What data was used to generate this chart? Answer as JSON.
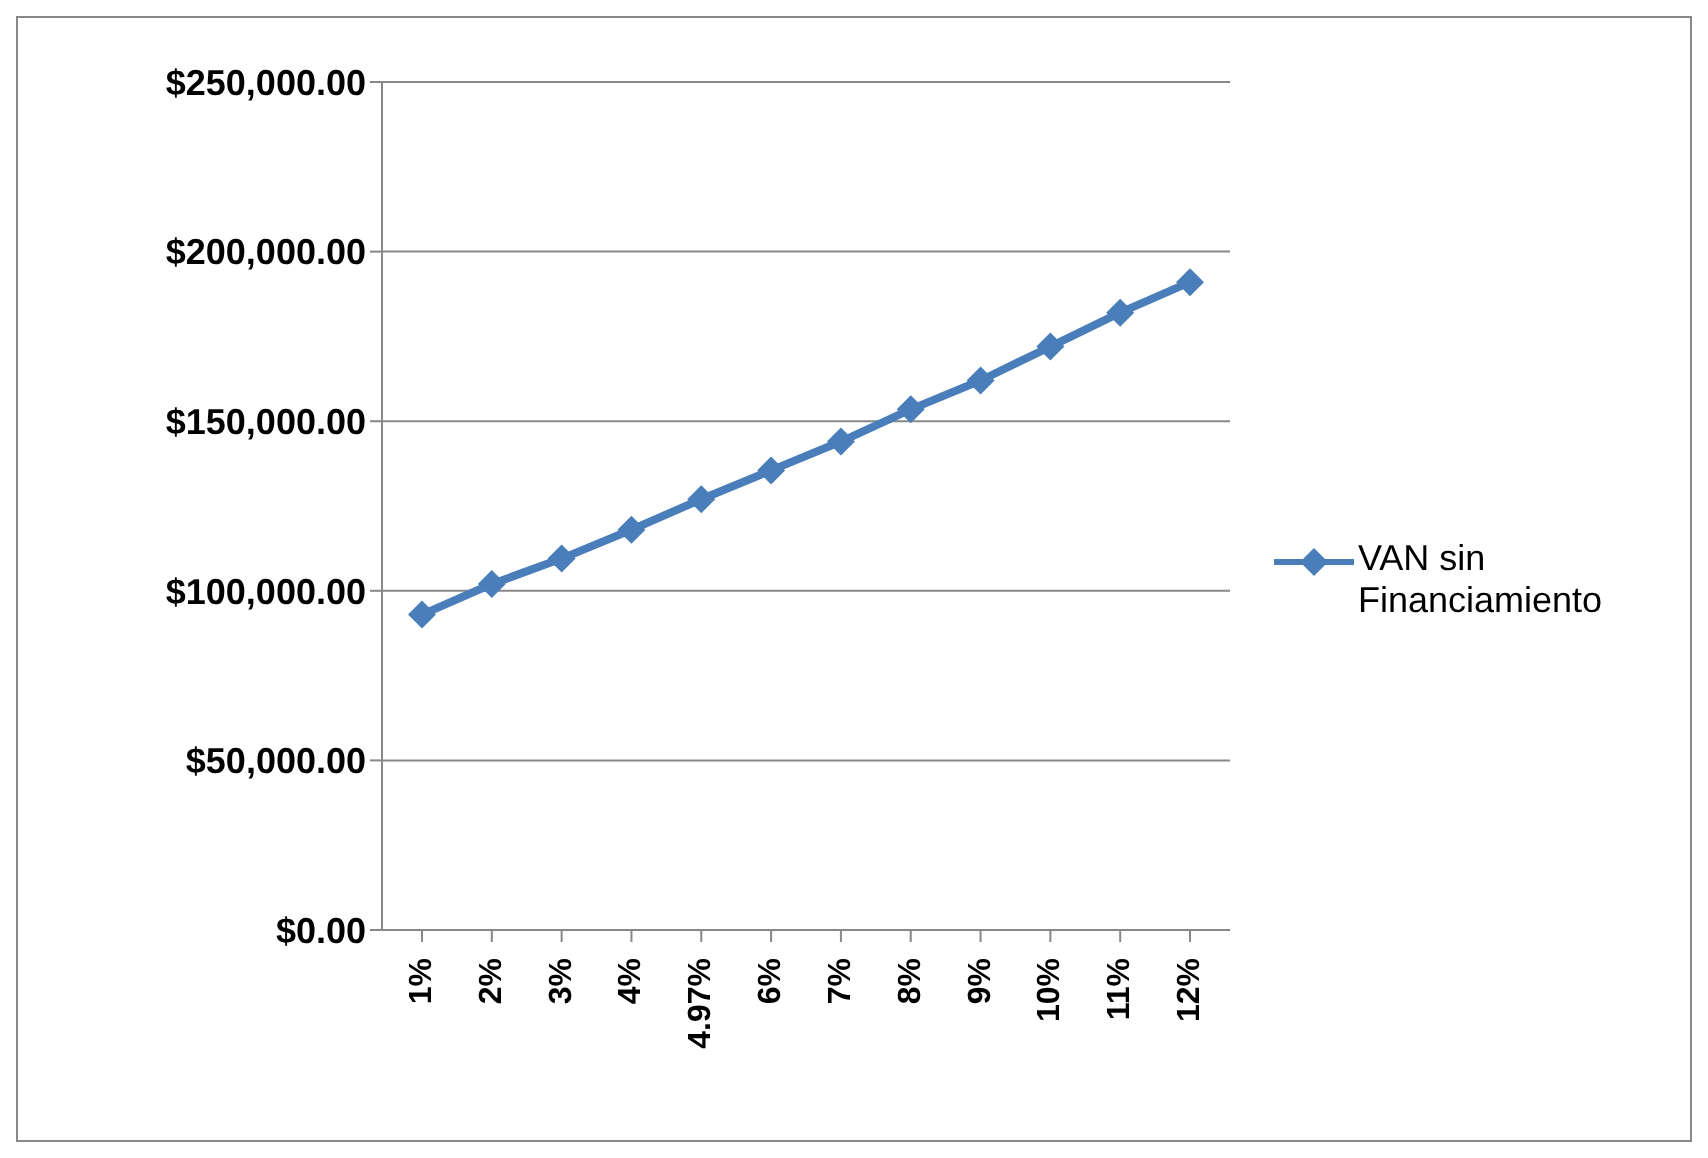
{
  "chart_data": {
    "type": "line",
    "categories": [
      "1%",
      "2%",
      "3%",
      "4%",
      "4.97%",
      "6%",
      "7%",
      "8%",
      "9%",
      "10%",
      "11%",
      "12%"
    ],
    "series": [
      {
        "name": "VAN sin Financiamiento",
        "color": "#4a7ebb",
        "values": [
          93000,
          102000,
          109500,
          118000,
          127000,
          135500,
          144000,
          153500,
          162000,
          172000,
          182000,
          191000
        ]
      }
    ],
    "ylim": [
      0,
      250000
    ],
    "yticks": [
      {
        "value": 0,
        "label": "$0.00"
      },
      {
        "value": 50000,
        "label": "$50,000.00"
      },
      {
        "value": 100000,
        "label": "$100,000.00"
      },
      {
        "value": 150000,
        "label": "$150,000.00"
      },
      {
        "value": 200000,
        "label": "$200,000.00"
      },
      {
        "value": 250000,
        "label": "$250,000.00"
      }
    ],
    "grid": "y",
    "legend": "right",
    "marker": "diamond",
    "line_style": "solid"
  }
}
